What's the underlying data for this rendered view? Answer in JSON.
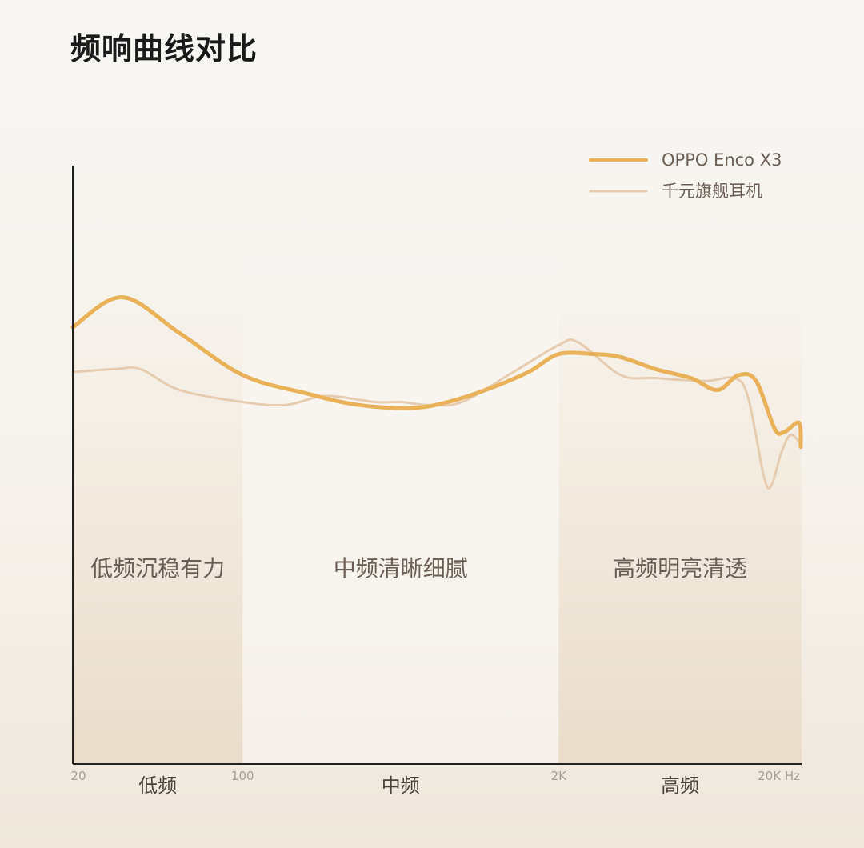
{
  "title": "频响曲线对比",
  "chart_data": {
    "type": "line",
    "title": "频响曲线对比",
    "x_scale": "log",
    "xlim": [
      20,
      20000
    ],
    "grid": false,
    "legend_position": "top-right",
    "x_ticks": [
      {
        "value": 20,
        "label": "20"
      },
      {
        "value": 100,
        "label": "100"
      },
      {
        "value": 2000,
        "label": "2K"
      },
      {
        "value": 20000,
        "label": "20K Hz"
      }
    ],
    "regions": [
      {
        "label": "低频",
        "band_label": "低频沉稳有力",
        "from": 20,
        "to": 100
      },
      {
        "label": "中频",
        "band_label": "中频清晰细腻",
        "from": 100,
        "to": 2000
      },
      {
        "label": "高频",
        "band_label": "高频明亮清透",
        "from": 2000,
        "to": 20000
      }
    ],
    "series": [
      {
        "name": "OPPO Enco X3",
        "color": "#e9b25a",
        "points": [
          [
            20,
            0.73
          ],
          [
            32,
            0.78
          ],
          [
            55,
            0.72
          ],
          [
            100,
            0.65
          ],
          [
            180,
            0.62
          ],
          [
            300,
            0.6
          ],
          [
            500,
            0.595
          ],
          [
            700,
            0.605
          ],
          [
            1000,
            0.625
          ],
          [
            1500,
            0.655
          ],
          [
            2000,
            0.685
          ],
          [
            2800,
            0.685
          ],
          [
            3600,
            0.68
          ],
          [
            5000,
            0.66
          ],
          [
            7000,
            0.645
          ],
          [
            9000,
            0.625
          ],
          [
            11000,
            0.65
          ],
          [
            13000,
            0.64
          ],
          [
            15500,
            0.56
          ],
          [
            17000,
            0.555
          ],
          [
            19500,
            0.57
          ],
          [
            20500,
            0.53
          ]
        ]
      },
      {
        "name": "千元旗舰耳机",
        "color": "#e6cdb2",
        "points": [
          [
            20,
            0.655
          ],
          [
            30,
            0.66
          ],
          [
            38,
            0.66
          ],
          [
            55,
            0.625
          ],
          [
            100,
            0.605
          ],
          [
            150,
            0.6
          ],
          [
            220,
            0.615
          ],
          [
            350,
            0.605
          ],
          [
            450,
            0.605
          ],
          [
            580,
            0.6
          ],
          [
            800,
            0.605
          ],
          [
            1300,
            0.655
          ],
          [
            2000,
            0.7
          ],
          [
            2400,
            0.705
          ],
          [
            3600,
            0.65
          ],
          [
            5000,
            0.645
          ],
          [
            8000,
            0.64
          ],
          [
            10500,
            0.645
          ],
          [
            12000,
            0.615
          ],
          [
            14000,
            0.48
          ],
          [
            15000,
            0.465
          ],
          [
            16500,
            0.52
          ],
          [
            18000,
            0.55
          ],
          [
            20000,
            0.535
          ]
        ]
      }
    ]
  }
}
